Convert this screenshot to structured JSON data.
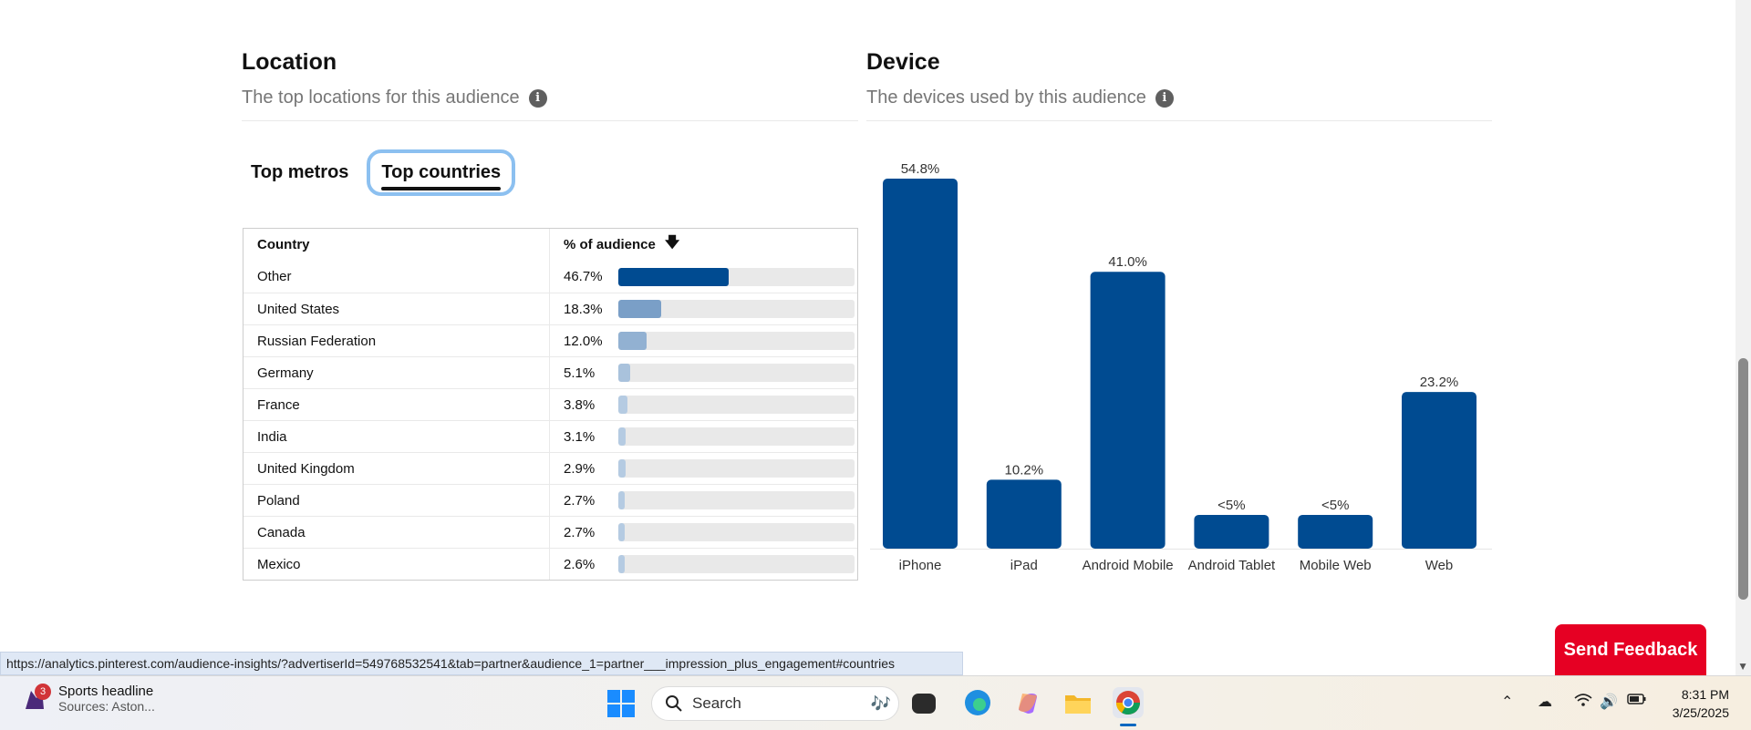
{
  "location": {
    "title": "Location",
    "subtitle": "The top locations for this audience",
    "tabs": [
      {
        "label": "Top metros",
        "active": false
      },
      {
        "label": "Top countries",
        "active": true
      }
    ],
    "table": {
      "col_country": "Country",
      "col_pct": "% of audience",
      "rows": [
        {
          "country": "Other",
          "pct_label": "46.7%",
          "pct": 46.7,
          "color": "#004b91"
        },
        {
          "country": "United States",
          "pct_label": "18.3%",
          "pct": 18.3,
          "color": "#7a9fc7"
        },
        {
          "country": "Russian Federation",
          "pct_label": "12.0%",
          "pct": 12.0,
          "color": "#92b1d2"
        },
        {
          "country": "Germany",
          "pct_label": "5.1%",
          "pct": 5.1,
          "color": "#a9c2dc"
        },
        {
          "country": "France",
          "pct_label": "3.8%",
          "pct": 3.8,
          "color": "#b5cbe2"
        },
        {
          "country": "India",
          "pct_label": "3.1%",
          "pct": 3.1,
          "color": "#b5cbe2"
        },
        {
          "country": "United Kingdom",
          "pct_label": "2.9%",
          "pct": 2.9,
          "color": "#b5cbe2"
        },
        {
          "country": "Poland",
          "pct_label": "2.7%",
          "pct": 2.7,
          "color": "#b5cbe2"
        },
        {
          "country": "Canada",
          "pct_label": "2.7%",
          "pct": 2.7,
          "color": "#b5cbe2"
        },
        {
          "country": "Mexico",
          "pct_label": "2.6%",
          "pct": 2.6,
          "color": "#b5cbe2"
        }
      ]
    }
  },
  "device": {
    "title": "Device",
    "subtitle": "The devices used by this audience",
    "bar_color": "#004b91"
  },
  "chart_data": {
    "type": "bar",
    "categories": [
      "iPhone",
      "iPad",
      "Android Mobile",
      "Android Tablet",
      "Mobile Web",
      "Web"
    ],
    "values": [
      54.8,
      10.2,
      41.0,
      5,
      5,
      23.2
    ],
    "labels": [
      "54.8%",
      "10.2%",
      "41.0%",
      "<5%",
      "<5%",
      "23.2%"
    ],
    "title": "",
    "xlabel": "",
    "ylabel": "",
    "ylim": [
      0,
      54.8
    ]
  },
  "feedback_button": "Send Feedback",
  "status_url": "https://analytics.pinterest.com/audience-insights/?advertiserId=549768532541&tab=partner&audience_1=partner___impression_plus_engagement#countries",
  "taskbar": {
    "news_badge": "3",
    "news_title": "Sports headline",
    "news_sub": "Sources: Aston...",
    "search_placeholder": "Search",
    "time": "8:31 PM",
    "date": "3/25/2025"
  }
}
